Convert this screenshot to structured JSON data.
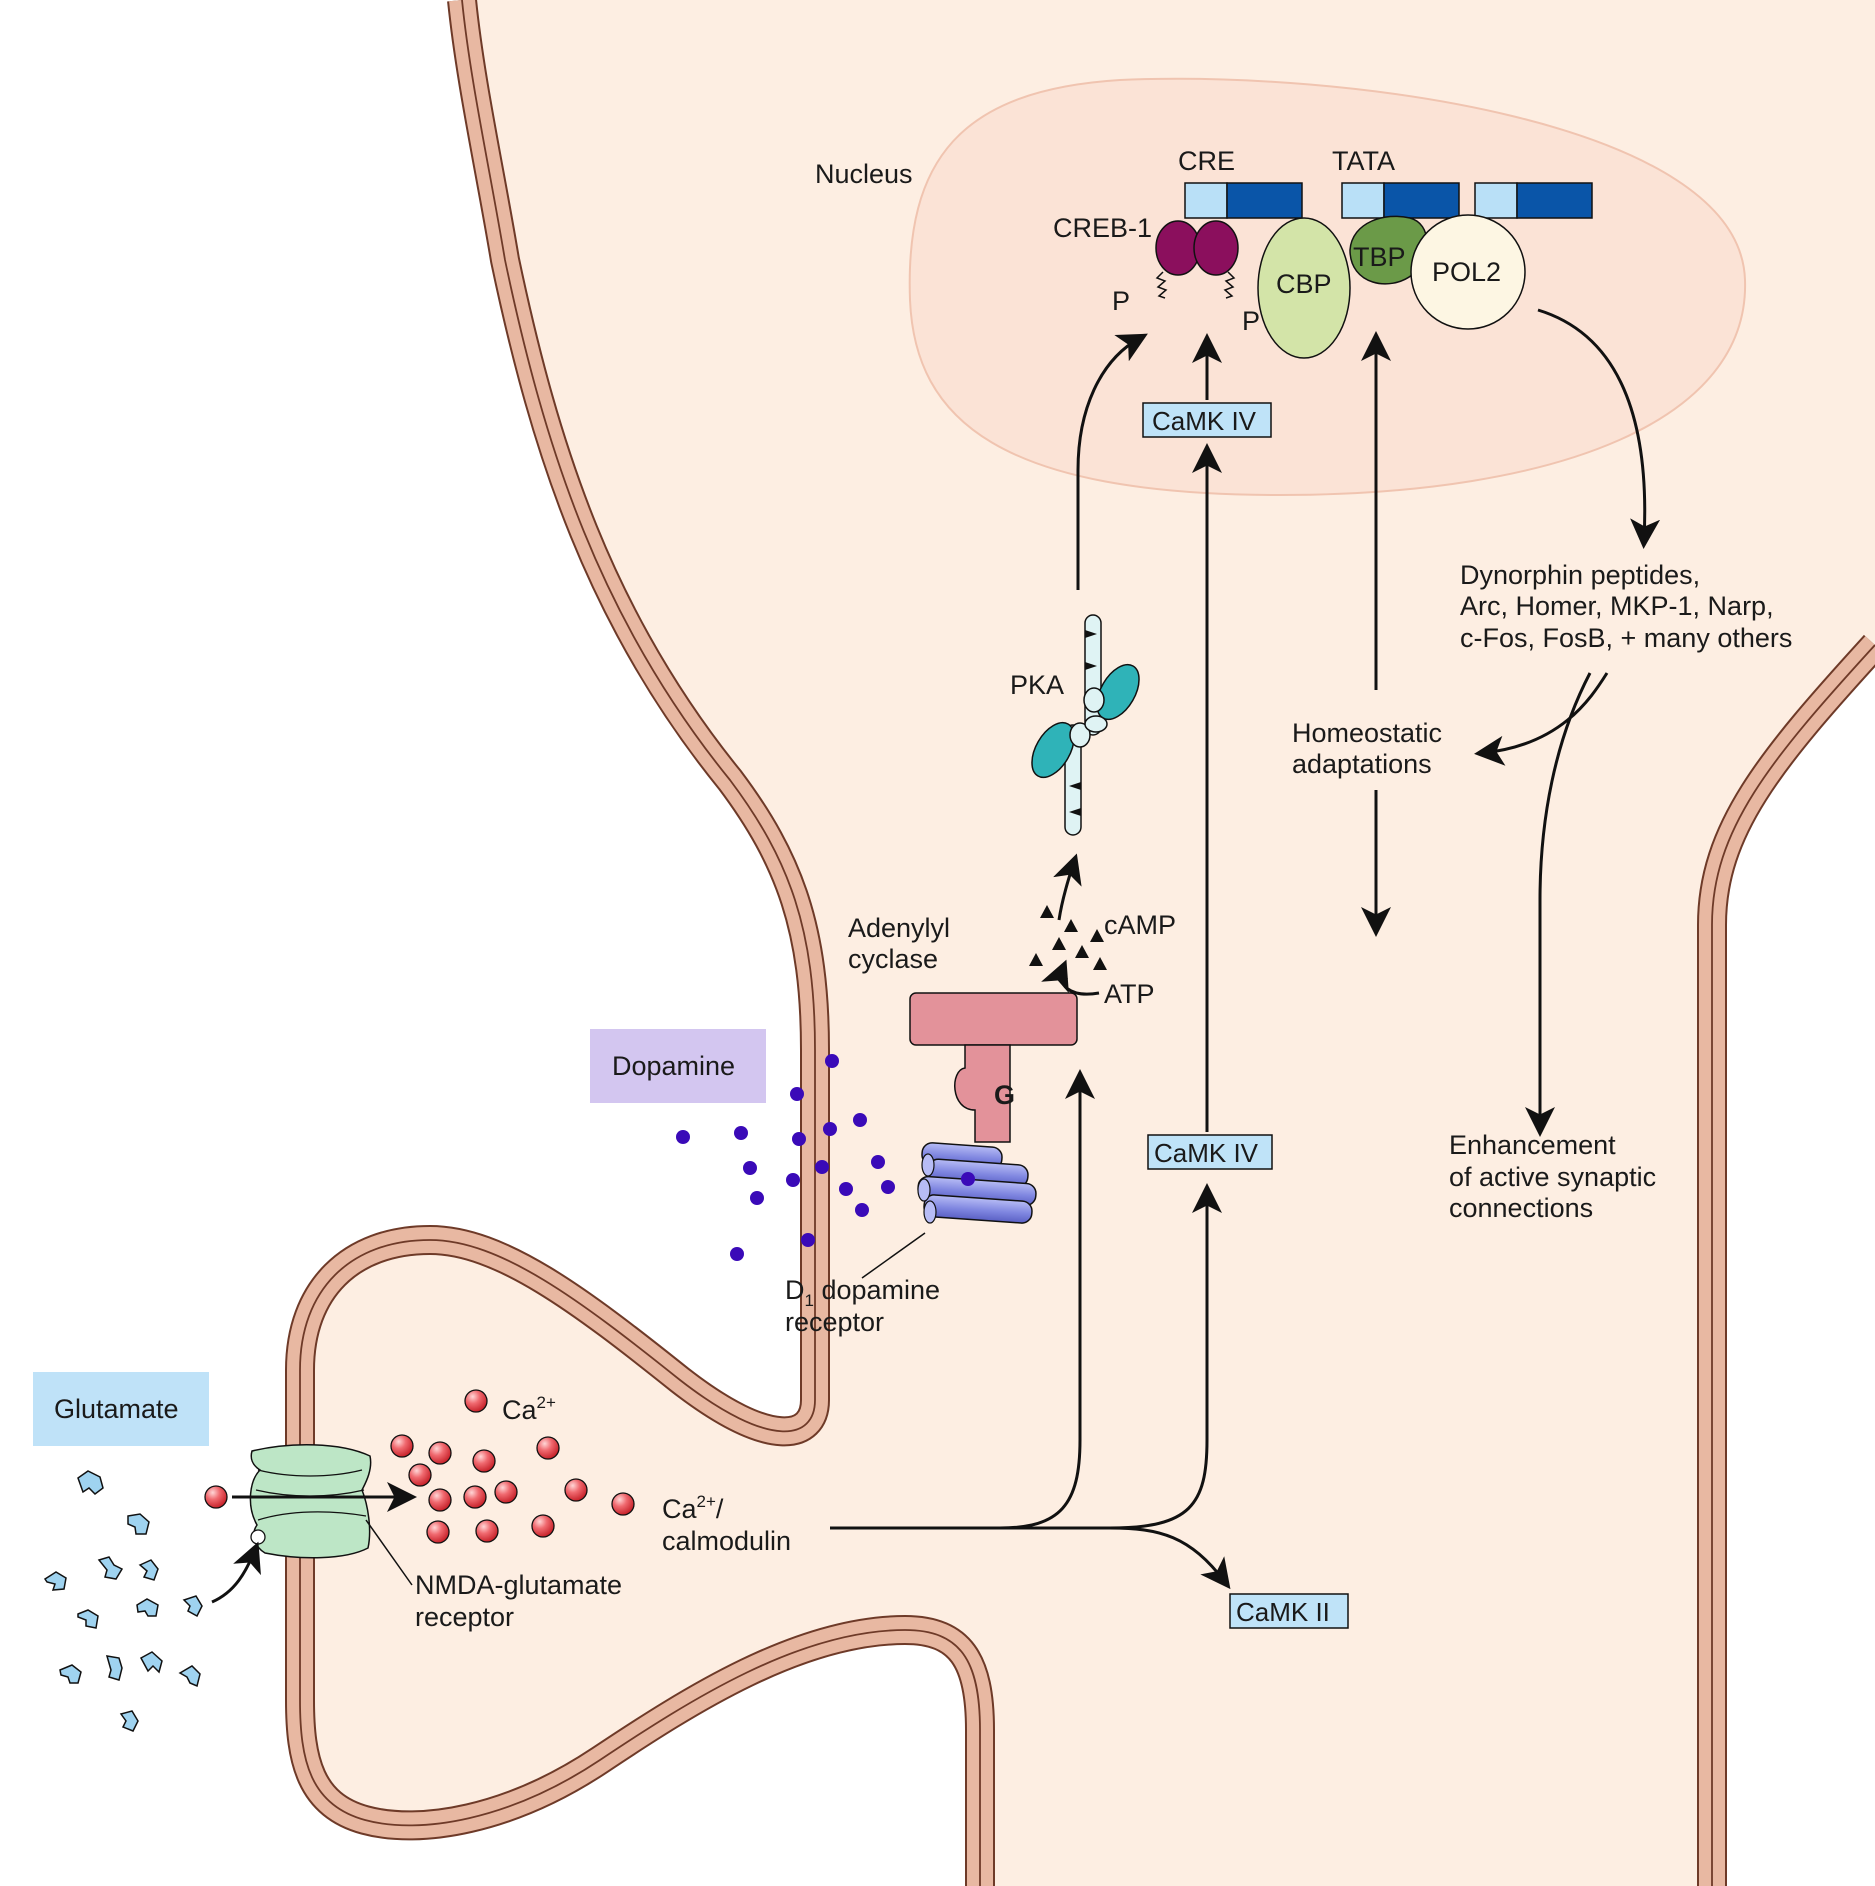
{
  "labels": {
    "nucleus": "Nucleus",
    "cre": "CRE",
    "tata": "TATA",
    "creb": "CREB-1",
    "p_left": "P",
    "p_right": "P",
    "cbp": "CBP",
    "tbp": "TBP",
    "pol2": "POL2",
    "camk4_top": "CaMK IV",
    "camk4_bottom": "CaMK IV",
    "camk2": "CaMK II",
    "pka": "PKA",
    "camp": "cAMP",
    "atp": "ATP",
    "adenylyl_line1": "Adenylyl",
    "adenylyl_line2": "cyclase",
    "g": "G",
    "dopamine": "Dopamine",
    "d1_d": "D",
    "d1_sub": "1",
    "d1_rest": " dopamine",
    "d1_line2": "receptor",
    "glutamate": "Glutamate",
    "ca_base": "Ca",
    "ca_sup": "2+",
    "cacal_base": "Ca",
    "cacal_sup": "2+",
    "cacal_slash": "/",
    "cacal_line2": "calmodulin",
    "nmda_line1": "NMDA-glutamate",
    "nmda_line2": "receptor",
    "genes_line1": "Dynorphin peptides,",
    "genes_line2": "Arc, Homer, MKP-1, Narp,",
    "genes_line3": "c-Fos, FosB, + many others",
    "homeo_line1": "Homeostatic",
    "homeo_line2": "adaptations",
    "enh_line1": "Enhancement",
    "enh_line2": "of active synaptic",
    "enh_line3": "connections"
  },
  "colors": {
    "cytoplasm": "#fdeee2",
    "membrane_outer": "#e8b8a2",
    "membrane_line": "#6e3a28",
    "nucleus_fill": "#fbe3d6",
    "nucleus_stroke": "#f0c4b0",
    "dna_light": "#b9e0f7",
    "dna_dark": "#0a55a8",
    "creb": "#8b0f5d",
    "cbp": "#d3e4a8",
    "tbp": "#6b9a48",
    "pol2": "#fdf6e3",
    "camk_box": "#bfe3f8",
    "pka_subunit": "#2fb3b8",
    "pka_chain": "#dff3f4",
    "adenylyl": "#e3929a",
    "d1_receptor": "#8a90e6",
    "dopamine_dot": "#3a0ab8",
    "dopamine_label_bg": "#d3c6f0",
    "glutamate_label_bg": "#bfe2f8",
    "glutamate_shape": "#9fd3f0",
    "calcium": "#e8454f",
    "nmda": "#bde6c6"
  },
  "icons": {
    "dopamine_molecule": "purple-dot",
    "glutamate_molecule": "blue-fragment",
    "calcium_ion": "red-sphere",
    "camp_molecule": "black-triangle"
  }
}
